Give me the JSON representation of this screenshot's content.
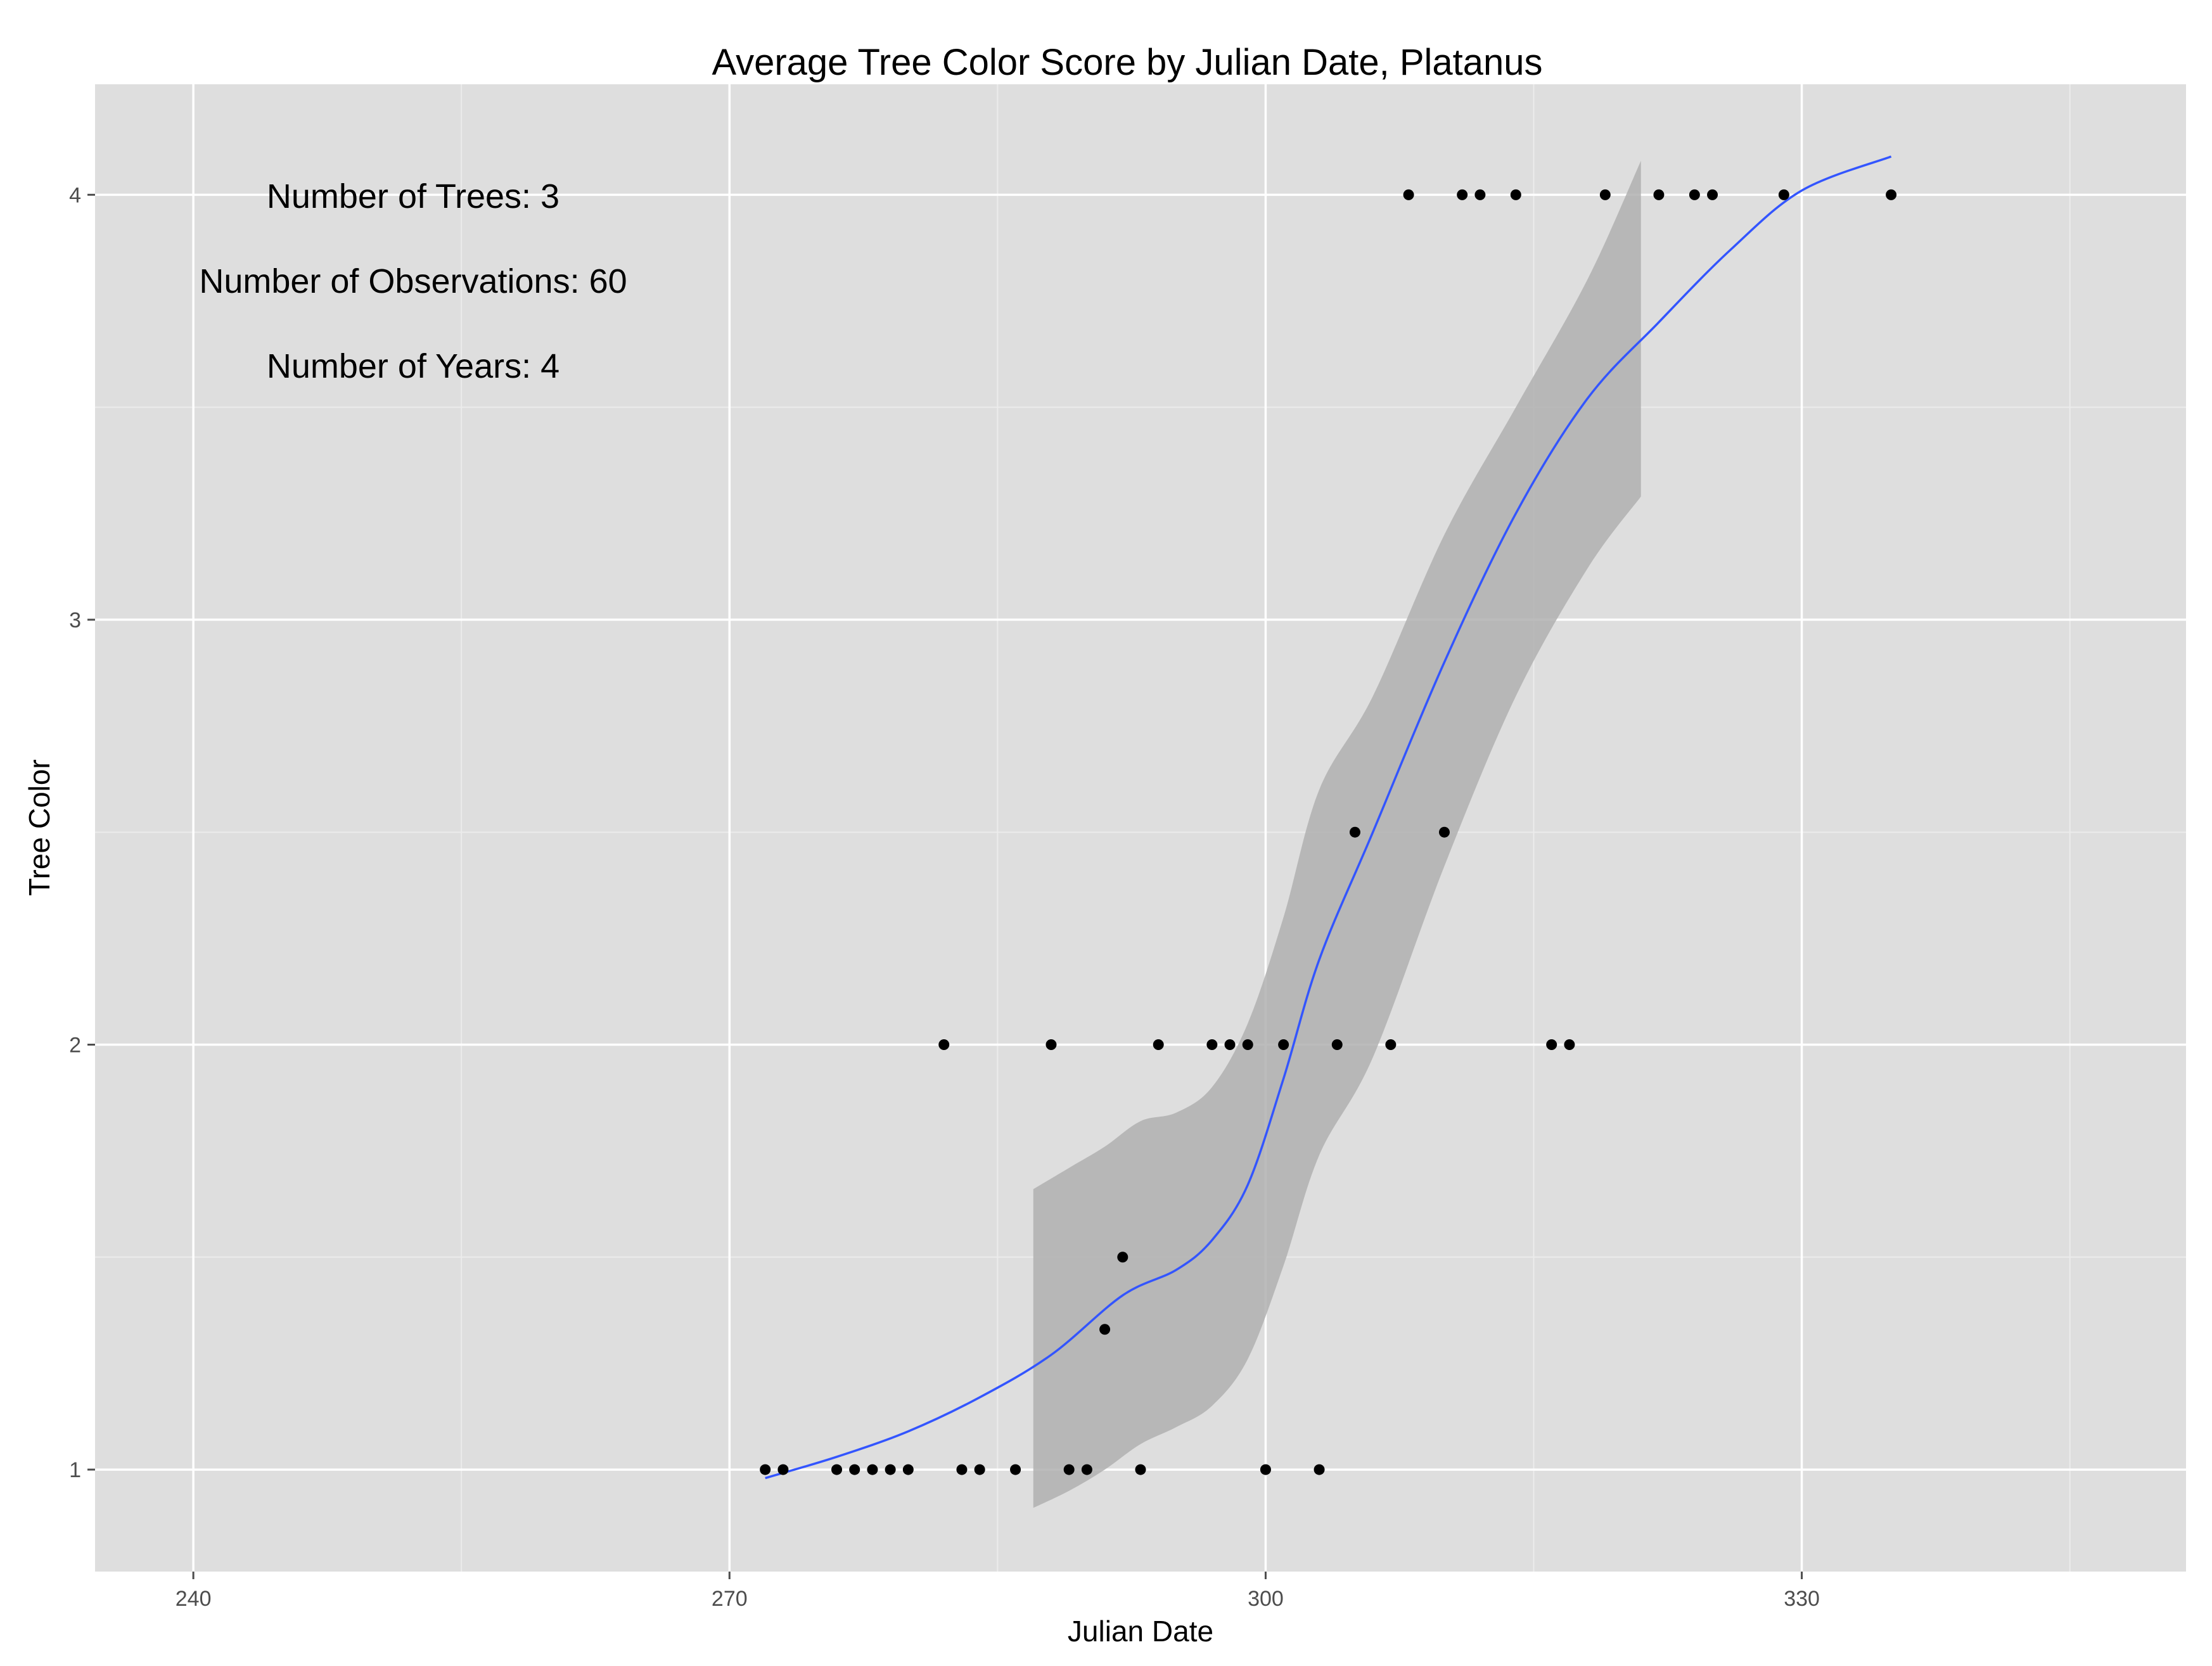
{
  "chart_data": {
    "type": "scatter",
    "title": "Average Tree Color Score by Julian Date, Platanus",
    "xlabel": "Julian Date",
    "ylabel": "Tree Color",
    "xlim": [
      234.5,
      351.5
    ],
    "ylim": [
      0.76,
      4.26
    ],
    "x_ticks": [
      240,
      270,
      300,
      330
    ],
    "x_minor_ticks": [
      255,
      285,
      315,
      345
    ],
    "y_ticks": [
      1,
      2,
      3,
      4
    ],
    "y_minor_ticks": [
      1.5,
      2.5,
      3.5
    ],
    "grid": true,
    "legend": "none",
    "annotations": [
      "Number of Trees: 3",
      "Number of Observations: 60",
      "Number of Years: 4"
    ],
    "colors": {
      "panel": "#dedede",
      "grid": "#ffffff",
      "points": "#000000",
      "smooth_line": "#3355ff",
      "confidence_band": "#b0b0b0"
    },
    "points": [
      {
        "x": 272,
        "y": 1
      },
      {
        "x": 273,
        "y": 1
      },
      {
        "x": 276,
        "y": 1
      },
      {
        "x": 277,
        "y": 1
      },
      {
        "x": 278,
        "y": 1
      },
      {
        "x": 279,
        "y": 1
      },
      {
        "x": 280,
        "y": 1
      },
      {
        "x": 283,
        "y": 1
      },
      {
        "x": 284,
        "y": 1
      },
      {
        "x": 286,
        "y": 1
      },
      {
        "x": 289,
        "y": 1
      },
      {
        "x": 290,
        "y": 1
      },
      {
        "x": 293,
        "y": 1
      },
      {
        "x": 300,
        "y": 1
      },
      {
        "x": 303,
        "y": 1
      },
      {
        "x": 291,
        "y": 1.33
      },
      {
        "x": 292,
        "y": 1.5
      },
      {
        "x": 282,
        "y": 2
      },
      {
        "x": 288,
        "y": 2
      },
      {
        "x": 294,
        "y": 2
      },
      {
        "x": 297,
        "y": 2
      },
      {
        "x": 298,
        "y": 2
      },
      {
        "x": 299,
        "y": 2
      },
      {
        "x": 301,
        "y": 2
      },
      {
        "x": 304,
        "y": 2
      },
      {
        "x": 307,
        "y": 2
      },
      {
        "x": 316,
        "y": 2
      },
      {
        "x": 317,
        "y": 2
      },
      {
        "x": 305,
        "y": 2.5
      },
      {
        "x": 310,
        "y": 2.5
      },
      {
        "x": 308,
        "y": 4
      },
      {
        "x": 311,
        "y": 4
      },
      {
        "x": 312,
        "y": 4
      },
      {
        "x": 314,
        "y": 4
      },
      {
        "x": 319,
        "y": 4
      },
      {
        "x": 322,
        "y": 4
      },
      {
        "x": 324,
        "y": 4
      },
      {
        "x": 325,
        "y": 4
      },
      {
        "x": 329,
        "y": 4
      },
      {
        "x": 335,
        "y": 4
      }
    ],
    "smooth_line": [
      {
        "x": 272,
        "y": 0.98
      },
      {
        "x": 276,
        "y": 1.03
      },
      {
        "x": 280,
        "y": 1.09
      },
      {
        "x": 284,
        "y": 1.17
      },
      {
        "x": 288,
        "y": 1.27
      },
      {
        "x": 292,
        "y": 1.41
      },
      {
        "x": 295,
        "y": 1.47
      },
      {
        "x": 297,
        "y": 1.54
      },
      {
        "x": 299,
        "y": 1.67
      },
      {
        "x": 301,
        "y": 1.92
      },
      {
        "x": 303,
        "y": 2.2
      },
      {
        "x": 306,
        "y": 2.5
      },
      {
        "x": 310,
        "y": 2.9
      },
      {
        "x": 314,
        "y": 3.25
      },
      {
        "x": 318,
        "y": 3.52
      },
      {
        "x": 322,
        "y": 3.7
      },
      {
        "x": 326,
        "y": 3.87
      },
      {
        "x": 330,
        "y": 4.01
      },
      {
        "x": 335,
        "y": 4.09
      }
    ],
    "confidence_band": {
      "upper": [
        {
          "x": 287,
          "y": 1.66
        },
        {
          "x": 289,
          "y": 1.71
        },
        {
          "x": 291,
          "y": 1.76
        },
        {
          "x": 293,
          "y": 1.82
        },
        {
          "x": 295,
          "y": 1.84
        },
        {
          "x": 297,
          "y": 1.9
        },
        {
          "x": 299,
          "y": 2.05
        },
        {
          "x": 301,
          "y": 2.3
        },
        {
          "x": 303,
          "y": 2.6
        },
        {
          "x": 306,
          "y": 2.82
        },
        {
          "x": 310,
          "y": 3.2
        },
        {
          "x": 314,
          "y": 3.5
        },
        {
          "x": 318,
          "y": 3.8
        },
        {
          "x": 321,
          "y": 4.08
        }
      ],
      "lower": [
        {
          "x": 287,
          "y": 0.91
        },
        {
          "x": 289,
          "y": 0.95
        },
        {
          "x": 291,
          "y": 1.0
        },
        {
          "x": 293,
          "y": 1.06
        },
        {
          "x": 295,
          "y": 1.1
        },
        {
          "x": 297,
          "y": 1.15
        },
        {
          "x": 299,
          "y": 1.26
        },
        {
          "x": 301,
          "y": 1.48
        },
        {
          "x": 303,
          "y": 1.74
        },
        {
          "x": 306,
          "y": 1.97
        },
        {
          "x": 310,
          "y": 2.42
        },
        {
          "x": 314,
          "y": 2.82
        },
        {
          "x": 318,
          "y": 3.12
        },
        {
          "x": 321,
          "y": 3.29
        }
      ]
    }
  }
}
